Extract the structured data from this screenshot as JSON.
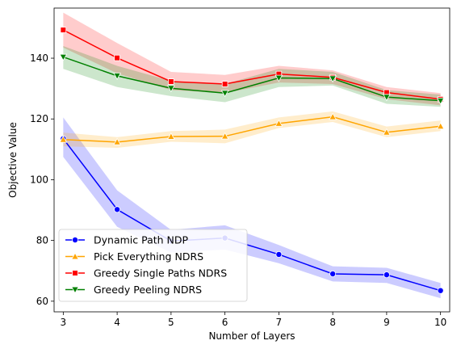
{
  "chart_data": {
    "type": "line",
    "xlabel": "Number of Layers",
    "ylabel": "Objective Value",
    "x": [
      3,
      4,
      5,
      6,
      7,
      8,
      9,
      10
    ],
    "xlim": [
      2.83,
      10.17
    ],
    "ylim": [
      56.5,
      156.5
    ],
    "xticks": [
      3,
      4,
      5,
      6,
      7,
      8,
      9,
      10
    ],
    "yticks": [
      60,
      80,
      100,
      120,
      140
    ],
    "grid": false,
    "legend_position": "lower-left",
    "series": [
      {
        "name": "Dynamic Path NDP",
        "color": "#0000ff",
        "marker": "circle",
        "values": [
          113.5,
          90.2,
          79.8,
          80.8,
          75.4,
          69.0,
          68.7,
          63.5
        ],
        "lower": [
          107.5,
          84.5,
          76.0,
          77.0,
          72.5,
          66.5,
          66.0,
          61.0
        ],
        "upper": [
          120.5,
          96.5,
          83.5,
          85.0,
          78.5,
          71.5,
          71.0,
          66.0
        ]
      },
      {
        "name": "Pick Everything NDRS",
        "color": "#ffa500",
        "marker": "triangle-up",
        "values": [
          113.2,
          112.4,
          114.2,
          114.3,
          118.5,
          120.7,
          115.6,
          117.6
        ],
        "lower": [
          111.0,
          110.5,
          112.5,
          112.0,
          117.0,
          119.0,
          114.0,
          116.0
        ],
        "upper": [
          115.5,
          114.0,
          116.0,
          116.5,
          120.5,
          122.5,
          117.5,
          119.5
        ]
      },
      {
        "name": "Greedy Single Paths NDRS",
        "color": "#ff0000",
        "marker": "square",
        "values": [
          149.3,
          140.1,
          132.3,
          131.5,
          134.8,
          133.7,
          128.7,
          126.5
        ],
        "lower": [
          143.5,
          135.0,
          129.5,
          128.5,
          132.0,
          131.5,
          126.5,
          124.5
        ],
        "upper": [
          155.0,
          145.0,
          135.5,
          134.5,
          137.5,
          136.0,
          130.5,
          128.5
        ]
      },
      {
        "name": "Greedy Peeling NDRS",
        "color": "#008000",
        "marker": "triangle-down",
        "values": [
          140.4,
          134.2,
          130.1,
          128.5,
          133.5,
          133.3,
          127.2,
          126.0
        ],
        "lower": [
          136.5,
          130.5,
          127.5,
          125.5,
          130.5,
          131.0,
          125.0,
          124.0
        ],
        "upper": [
          144.0,
          137.5,
          132.5,
          131.5,
          136.5,
          135.5,
          129.5,
          128.0
        ]
      }
    ]
  }
}
